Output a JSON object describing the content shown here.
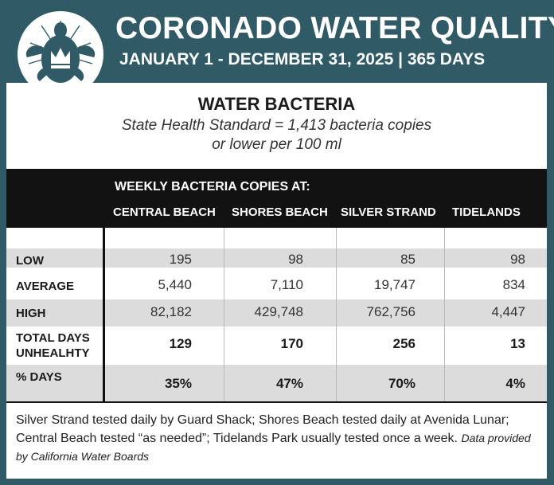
{
  "header": {
    "title": "CORONADO WATER QUALITY",
    "subtitle": "JANUARY 1 - DECEMBER 31, 2025 | 365 DAYS",
    "logo_icon": "sea-turtle-with-crown-icon"
  },
  "section": {
    "title": "WATER BACTERIA",
    "standard_line1": "State Health Standard  = 1,413 bacteria copies",
    "standard_line2": "or lower per 100 ml"
  },
  "table": {
    "group_header": "WEEKLY BACTERIA COPIES AT:",
    "columns": [
      "CENTRAL BEACH",
      "SHORES BEACH",
      "SILVER STRAND",
      "TIDELANDS"
    ],
    "rows": [
      {
        "label": "LOW",
        "values": [
          "195",
          "98",
          "85",
          "98"
        ]
      },
      {
        "label": "AVERAGE",
        "values": [
          "5,440",
          "7,110",
          "19,747",
          "834"
        ]
      },
      {
        "label": "HIGH",
        "values": [
          "82,182",
          "429,748",
          "762,756",
          "4,447"
        ]
      },
      {
        "label_line1": "TOTAL DAYS",
        "label_line2": "UNHEALHTY",
        "values": [
          "129",
          "170",
          "256",
          "13"
        ]
      },
      {
        "label": "% DAYS",
        "values": [
          "35%",
          "47%",
          "70%",
          "4%"
        ]
      }
    ]
  },
  "notes": {
    "text": "Silver Strand tested daily by Guard Shack; Shores Beach tested daily at Avenida Lunar; Central Beach tested “as needed”; Tidelands Park usually tested once a week.",
    "source": "Data provided by California Water Boards"
  },
  "colors": {
    "header_bg": "#2f5a66",
    "band_gray": "#dcdcdc",
    "table_header_bg": "#121212"
  }
}
